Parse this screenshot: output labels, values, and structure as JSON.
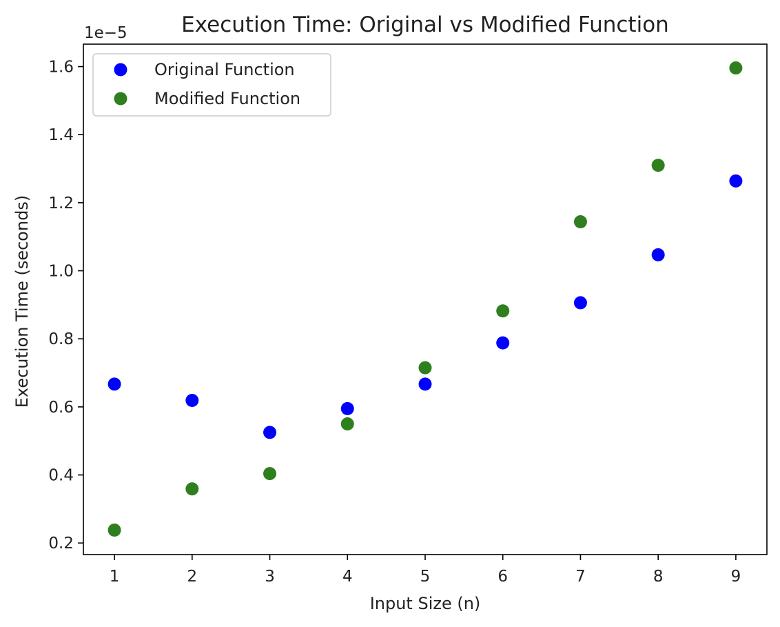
{
  "chart_data": {
    "type": "scatter",
    "title": "Execution Time: Original vs Modified Function",
    "xlabel": "Input Size (n)",
    "ylabel": "Execution Time (seconds)",
    "offset_label": "1e−5",
    "x": [
      1,
      2,
      3,
      4,
      5,
      6,
      7,
      8,
      9
    ],
    "xlim": [
      0.6,
      9.4
    ],
    "ylim": [
      0.166,
      1.666
    ],
    "x_ticks": [
      1,
      2,
      3,
      4,
      5,
      6,
      7,
      8,
      9
    ],
    "y_ticks": [
      0.2,
      0.4,
      0.6,
      0.8,
      1.0,
      1.2,
      1.4,
      1.6
    ],
    "y_tick_labels": [
      "0.2",
      "0.4",
      "0.6",
      "0.8",
      "1.0",
      "1.2",
      "1.4",
      "1.6"
    ],
    "grid": false,
    "legend_position": "top-left",
    "series": [
      {
        "name": "Original Function",
        "color": "#0000ff",
        "values": [
          0.667,
          0.619,
          0.525,
          0.595,
          0.667,
          0.788,
          0.906,
          1.047,
          1.264
        ]
      },
      {
        "name": "Modified Function",
        "color": "#2f7f1f",
        "values": [
          0.238,
          0.359,
          0.404,
          0.55,
          0.715,
          0.882,
          1.144,
          1.31,
          1.596
        ]
      }
    ]
  }
}
